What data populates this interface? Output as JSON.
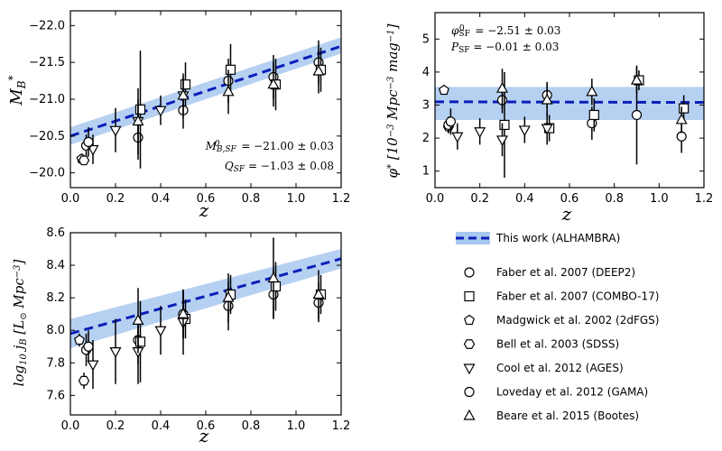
{
  "chart_data": [
    {
      "id": "mb",
      "type": "scatter",
      "xlabel": "z",
      "ylabel": "M*_B",
      "xlim": [
        0,
        1.2
      ],
      "ylim": [
        -19.8,
        -22.2
      ],
      "y_inverted": true,
      "xticks": [
        "0.0",
        "0.2",
        "0.4",
        "0.6",
        "0.8",
        "1.0",
        "1.2"
      ],
      "yticks": [
        "−20.0",
        "−20.5",
        "−21.0",
        "−21.5",
        "−22.0"
      ],
      "ytick_values": [
        -20.0,
        -20.5,
        -21.0,
        -21.5,
        -22.0
      ],
      "annotations": [
        "M⁰B,SF = −21.00 ± 0.03",
        "QSF = −1.03 ± 0.08"
      ],
      "fit": {
        "x": [
          0,
          1.2
        ],
        "y": [
          -20.5,
          -21.72
        ],
        "band": [
          [
            0,
            -20.38,
            -20.62
          ],
          [
            1.2,
            -21.62,
            -21.84
          ]
        ]
      },
      "series": [
        {
          "name": "Faber et al. 2007 (DEEP2)",
          "marker": "circle",
          "points": [
            [
              0.3,
              -20.48,
              0.3
            ],
            [
              0.5,
              -20.85,
              0.25
            ],
            [
              0.7,
              -21.25,
              0.3
            ],
            [
              0.9,
              -21.3,
              0.3
            ],
            [
              1.1,
              -21.5,
              0.3
            ]
          ]
        },
        {
          "name": "Faber et al. 2007 (COMBO-17)",
          "marker": "square",
          "points": [
            [
              0.31,
              -20.86,
              0.8
            ],
            [
              0.51,
              -21.2,
              0.3
            ],
            [
              0.71,
              -21.4,
              0.35
            ],
            [
              0.91,
              -21.2,
              0.35
            ],
            [
              1.11,
              -21.4,
              0.3
            ]
          ]
        },
        {
          "name": "Madgwick et al. 2002 (2dFGS)",
          "marker": "pentagon",
          "points": [
            [
              0.05,
              -20.19,
              0.05
            ]
          ]
        },
        {
          "name": "Bell et al. 2003 (SDSS)",
          "marker": "hexagon",
          "points": [
            [
              0.06,
              -20.17,
              0.05
            ]
          ]
        },
        {
          "name": "Cool et al. 2012 (AGES)",
          "marker": "triangle-down",
          "points": [
            [
              0.1,
              -20.32,
              0.2
            ],
            [
              0.2,
              -20.58,
              0.3
            ],
            [
              0.3,
              -20.7,
              0.3
            ],
            [
              0.4,
              -20.85,
              0.2
            ],
            [
              0.5,
              -21.05,
              0.25
            ]
          ]
        },
        {
          "name": "Loveday et al. 2012 (GAMA)",
          "marker": "circle",
          "points": [
            [
              0.07,
              -20.37,
              0.15
            ],
            [
              0.08,
              -20.42,
              0.2
            ]
          ]
        },
        {
          "name": "Beare et al. 2015 (Bootes)",
          "marker": "triangle-up",
          "points": [
            [
              0.3,
              -20.7,
              0.45
            ],
            [
              0.5,
              -21.05,
              0.3
            ],
            [
              0.7,
              -21.1,
              0.3
            ],
            [
              0.9,
              -21.2,
              0.3
            ],
            [
              1.1,
              -21.38,
              0.3
            ]
          ]
        }
      ]
    },
    {
      "id": "phi",
      "type": "scatter",
      "xlabel": "z",
      "ylabel": "φ* [10⁻³ Mpc⁻³ mag⁻¹]",
      "xlim": [
        0,
        1.2
      ],
      "ylim": [
        0.5,
        5.8
      ],
      "xticks": [
        "0.0",
        "0.2",
        "0.4",
        "0.6",
        "0.8",
        "1.0",
        "1.2"
      ],
      "yticks": [
        "1",
        "2",
        "3",
        "4",
        "5"
      ],
      "ytick_values": [
        1,
        2,
        3,
        4,
        5
      ],
      "annotations": [
        "φ⁰SF = −2.51 ± 0.03",
        "PSF = −0.01 ± 0.03"
      ],
      "fit": {
        "x": [
          0,
          1.2
        ],
        "y": [
          3.1,
          3.08
        ],
        "band": [
          [
            0,
            3.55,
            2.55
          ],
          [
            1.2,
            3.55,
            2.55
          ]
        ]
      },
      "series": [
        {
          "name": "Faber et al. 2007 (DEEP2)",
          "marker": "circle",
          "points": [
            [
              0.3,
              3.15,
              0.4
            ],
            [
              0.5,
              3.3,
              0.4
            ],
            [
              0.7,
              2.45,
              0.5
            ],
            [
              0.9,
              2.7,
              1.5
            ],
            [
              1.1,
              2.05,
              0.5
            ]
          ]
        },
        {
          "name": "Faber et al. 2007 (COMBO-17)",
          "marker": "square",
          "points": [
            [
              0.31,
              2.4,
              1.6
            ],
            [
              0.51,
              2.3,
              0.4
            ],
            [
              0.71,
              2.7,
              0.5
            ],
            [
              0.91,
              3.75,
              0.3
            ],
            [
              1.11,
              2.9,
              0.4
            ]
          ]
        },
        {
          "name": "Madgwick et al. 2002 (2dFGS)",
          "marker": "pentagon",
          "points": [
            [
              0.04,
              3.45,
              0.1
            ]
          ]
        },
        {
          "name": "Bell et al. 2003 (SDSS)",
          "marker": "hexagon",
          "points": [
            [
              0.06,
              2.35,
              0.2
            ]
          ]
        },
        {
          "name": "Cool et al. 2012 (AGES)",
          "marker": "triangle-down",
          "points": [
            [
              0.1,
              2.05,
              0.4
            ],
            [
              0.2,
              2.2,
              0.4
            ],
            [
              0.3,
              1.95,
              0.5
            ],
            [
              0.4,
              2.25,
              0.4
            ],
            [
              0.5,
              2.3,
              0.5
            ]
          ]
        },
        {
          "name": "Loveday et al. 2012 (GAMA)",
          "marker": "circle",
          "points": [
            [
              0.06,
              2.4,
              0.25
            ],
            [
              0.07,
              2.5,
              0.4
            ]
          ]
        },
        {
          "name": "Beare et al. 2015 (Bootes)",
          "marker": "triangle-up",
          "points": [
            [
              0.3,
              3.5,
              0.6
            ],
            [
              0.5,
              3.15,
              0.5
            ],
            [
              0.7,
              3.4,
              0.4
            ],
            [
              0.9,
              3.75,
              0.4
            ],
            [
              1.1,
              2.55,
              0.4
            ]
          ]
        }
      ]
    },
    {
      "id": "jb",
      "type": "scatter",
      "xlabel": "z",
      "ylabel": "log10 jB [L⊙ Mpc⁻³]",
      "xlim": [
        0,
        1.2
      ],
      "ylim": [
        7.48,
        8.6
      ],
      "xticks": [
        "0.0",
        "0.2",
        "0.4",
        "0.6",
        "0.8",
        "1.0",
        "1.2"
      ],
      "yticks": [
        "7.6",
        "7.8",
        "8.0",
        "8.2",
        "8.4",
        "8.6"
      ],
      "ytick_values": [
        7.6,
        7.8,
        8.0,
        8.2,
        8.4,
        8.6
      ],
      "fit": {
        "x": [
          0,
          1.2
        ],
        "y": [
          7.98,
          8.44
        ],
        "band": [
          [
            0,
            8.07,
            7.89
          ],
          [
            1.2,
            8.5,
            8.38
          ]
        ]
      },
      "series": [
        {
          "name": "Faber et al. 2007 (DEEP2)",
          "marker": "circle",
          "points": [
            [
              0.3,
              7.94,
              0.15
            ],
            [
              0.5,
              8.1,
              0.15
            ],
            [
              0.7,
              8.15,
              0.15
            ],
            [
              0.9,
              8.22,
              0.15
            ],
            [
              1.1,
              8.17,
              0.12
            ]
          ]
        },
        {
          "name": "Faber et al. 2007 (COMBO-17)",
          "marker": "square",
          "points": [
            [
              0.31,
              7.93,
              0.25
            ],
            [
              0.51,
              8.07,
              0.12
            ],
            [
              0.71,
              8.22,
              0.12
            ],
            [
              0.91,
              8.27,
              0.15
            ],
            [
              1.11,
              8.22,
              0.12
            ]
          ]
        },
        {
          "name": "Madgwick et al. 2002 (2dFGS)",
          "marker": "pentagon",
          "points": [
            [
              0.04,
              7.94,
              0.04
            ]
          ]
        },
        {
          "name": "Bell et al. 2003 (SDSS)",
          "marker": "hexagon",
          "points": [
            [
              0.06,
              7.69,
              0.05
            ]
          ]
        },
        {
          "name": "Cool et al. 2012 (AGES)",
          "marker": "triangle-down",
          "points": [
            [
              0.1,
              7.79,
              0.15
            ],
            [
              0.2,
              7.87,
              0.2
            ],
            [
              0.3,
              7.87,
              0.2
            ],
            [
              0.4,
              8.0,
              0.15
            ],
            [
              0.5,
              8.05,
              0.2
            ]
          ]
        },
        {
          "name": "Loveday et al. 2012 (GAMA)",
          "marker": "circle",
          "points": [
            [
              0.07,
              7.88,
              0.1
            ],
            [
              0.08,
              7.9,
              0.1
            ]
          ]
        },
        {
          "name": "Beare et al. 2015 (Bootes)",
          "marker": "triangle-up",
          "points": [
            [
              0.3,
              8.06,
              0.2
            ],
            [
              0.5,
              8.1,
              0.15
            ],
            [
              0.7,
              8.2,
              0.15
            ],
            [
              0.9,
              8.32,
              0.25
            ],
            [
              1.1,
              8.22,
              0.15
            ]
          ]
        }
      ]
    }
  ],
  "legend": {
    "fit_label": "This work (ALHAMBRA)",
    "items": [
      {
        "marker": "circle",
        "label": "Faber et al. 2007 (DEEP2)"
      },
      {
        "marker": "square",
        "label": "Faber et al. 2007 (COMBO-17)"
      },
      {
        "marker": "pentagon",
        "label": "Madgwick et al. 2002 (2dFGS)"
      },
      {
        "marker": "hexagon",
        "label": "Bell et al. 2003 (SDSS)"
      },
      {
        "marker": "triangle-down",
        "label": "Cool et al. 2012 (AGES)"
      },
      {
        "marker": "circle",
        "label": "Loveday et al. 2012 (GAMA)"
      },
      {
        "marker": "triangle-up",
        "label": "Beare et al. 2015 (Bootes)"
      }
    ]
  },
  "colors": {
    "fit_line": "#0b1fb8",
    "band": "#a9c8f0",
    "marker": "#000000"
  }
}
